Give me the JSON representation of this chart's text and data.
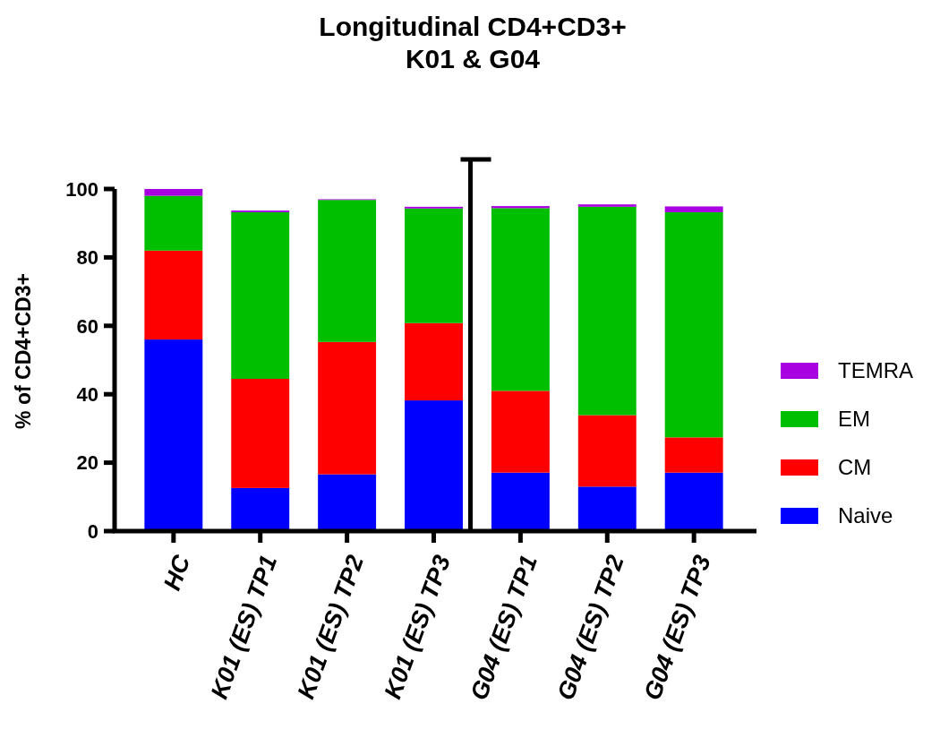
{
  "chart_data": {
    "type": "bar",
    "title": "Longitudinal CD4+CD3+\nK01 & G04",
    "ylabel": "% of CD4+CD3+",
    "categories": [
      "HC",
      "K01 (ES) TP1",
      "K01 (ES) TP2",
      "K01 (ES) TP3",
      "G04 (ES) TP1",
      "G04 (ES) TP2",
      "G04 (ES) TP3"
    ],
    "stacked": true,
    "series": [
      {
        "name": "Naive",
        "color": "#0000ff",
        "values": [
          56,
          12.6,
          16.6,
          38.2,
          17.1,
          13,
          17.1
        ]
      },
      {
        "name": "CM",
        "color": "#ff0000",
        "values": [
          26,
          31.9,
          38.7,
          22.6,
          23.9,
          20.9,
          10.3
        ]
      },
      {
        "name": "EM",
        "color": "#00bf00",
        "values": [
          16,
          48.7,
          41.5,
          33.5,
          53.4,
          60.9,
          65.8
        ]
      },
      {
        "name": "TEMRA",
        "color": "#a800e0",
        "values": [
          2,
          0.5,
          0.2,
          0.5,
          0.6,
          0.7,
          1.7
        ]
      }
    ],
    "ylim": [
      0,
      100
    ],
    "yticks": [
      0,
      20,
      40,
      60,
      80,
      100
    ],
    "grid": false,
    "legend": "right"
  }
}
